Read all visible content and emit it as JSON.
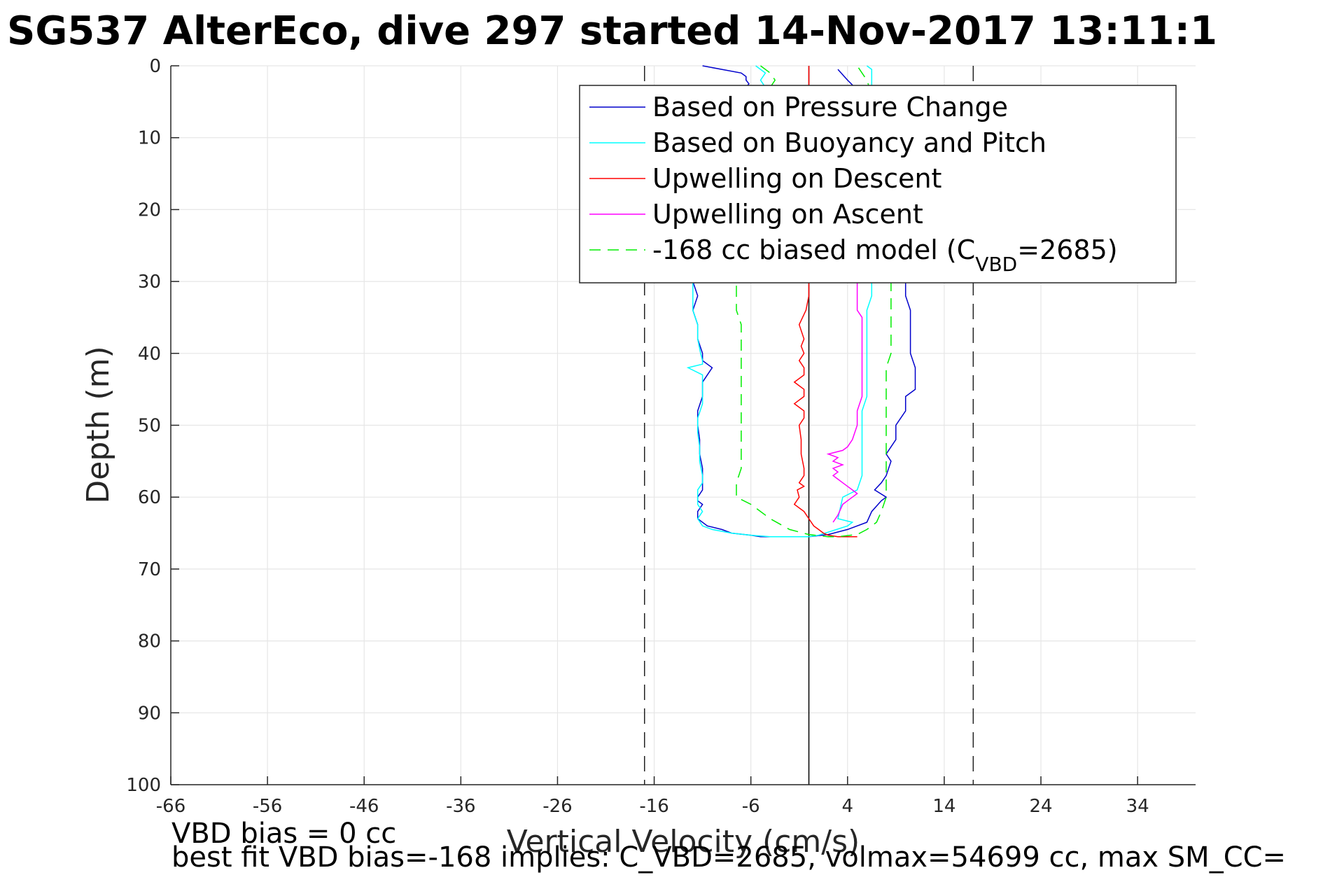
{
  "chart_data": {
    "type": "line",
    "title": "SG537 AlterEco, dive 297 started 14-Nov-2017 13:11:1",
    "xlabel": "Vertical Velocity (cm/s)",
    "ylabel": "Depth (m)",
    "xlim": [
      -66,
      40
    ],
    "ylim": [
      0,
      100
    ],
    "y_reversed": true,
    "grid": true,
    "legend_position": "top-right",
    "xticks": [
      "-66",
      "-56",
      "-46",
      "-36",
      "-26",
      "-16",
      "-6",
      "4",
      "14",
      "24",
      "34"
    ],
    "yticks": [
      "0",
      "10",
      "20",
      "30",
      "40",
      "50",
      "60",
      "70",
      "80",
      "90",
      "100"
    ],
    "reference_lines": {
      "zero_velocity": 0,
      "dashed_limits": [
        -17,
        17
      ]
    },
    "series": [
      {
        "name": "Based on Pressure Change",
        "color": "#0000cc",
        "style": "solid",
        "x": [
          -11,
          -7,
          -6.5,
          -6.5,
          -6.2,
          -6.5,
          -7,
          -8,
          -9,
          -10,
          -11,
          -11.5,
          -12,
          -12,
          -12,
          -12,
          -12,
          -12,
          -12,
          -12,
          -11.5,
          -12,
          -11.5,
          -11.5,
          -11,
          -11,
          -10,
          -11,
          -11,
          -11.5,
          -11.5,
          -11.3,
          -11.3,
          -11,
          -11,
          -11,
          -11.5,
          -11.5,
          -11.5,
          -11,
          -11.5,
          -11.5,
          -10.5,
          -9,
          -8,
          -6,
          -5,
          -4,
          0,
          2,
          4,
          6,
          6.5,
          7.5,
          8,
          6.8,
          7.5,
          8,
          8.5,
          8,
          9,
          9,
          10,
          10,
          11,
          11,
          10.5,
          10.5,
          10.5,
          10.5,
          10,
          10,
          10,
          10,
          10,
          10,
          10,
          10,
          10,
          10,
          9.5,
          9,
          8,
          7,
          5.5,
          4,
          3
        ],
        "y": [
          0,
          1,
          1.5,
          2,
          2.5,
          3,
          4,
          6,
          8,
          10,
          12,
          14,
          16,
          18,
          20,
          22,
          24,
          26,
          28,
          30,
          32,
          34,
          36,
          38,
          40,
          41,
          42,
          44,
          46,
          48,
          50,
          52,
          54,
          56,
          58,
          59,
          60,
          60.2,
          60.5,
          61,
          62,
          63,
          64,
          64.5,
          65,
          65.3,
          65.5,
          65.5,
          65.5,
          65.2,
          64.5,
          63.5,
          62,
          60.5,
          60,
          59,
          58,
          57,
          55,
          54,
          52,
          50,
          48,
          46,
          45,
          42,
          40,
          38,
          36,
          34,
          32,
          30,
          28,
          26,
          24,
          22,
          20,
          18,
          16,
          14,
          12,
          10,
          8,
          6,
          4,
          2,
          0.5
        ]
      },
      {
        "name": "Based on Buoyancy and Pitch",
        "color": "#00ffff",
        "style": "solid",
        "x": [
          -5.5,
          -4.5,
          -5,
          -4.5,
          -5,
          -6,
          -7.5,
          -9,
          -10,
          -11,
          -11.5,
          -12,
          -12,
          -12,
          -12,
          -12,
          -12,
          -12,
          -12,
          -12,
          -11.5,
          -11.5,
          -11.2,
          -11,
          -11,
          -12.5,
          -11,
          -11,
          -11,
          -11.5,
          -11.5,
          -11.3,
          -11.3,
          -11,
          -11,
          -11.5,
          -11.5,
          -11.5,
          -11,
          -11.5,
          -11,
          -10,
          -8,
          -6,
          -4,
          -2,
          0,
          1,
          4,
          4.5,
          3,
          3.5,
          5,
          5.5,
          5.5,
          5.5,
          5.5,
          5.5,
          6,
          6,
          6,
          6,
          6,
          6,
          6,
          6.5,
          6.5,
          6.5,
          6.5,
          7,
          7,
          7,
          7,
          7,
          7,
          7,
          7,
          7,
          7,
          6.5,
          6.5,
          6.5,
          6.5,
          6.5,
          6
        ],
        "y": [
          0,
          1,
          2,
          3,
          4,
          6,
          8,
          10,
          12,
          14,
          16,
          18,
          20,
          22,
          24,
          26,
          28,
          30,
          32,
          34,
          36,
          38,
          40,
          41,
          41.5,
          42,
          43,
          45,
          47,
          49,
          51,
          53,
          55,
          57,
          58,
          59,
          60,
          61,
          62,
          63,
          64,
          64.5,
          65,
          65.3,
          65.5,
          65.5,
          65.5,
          65.3,
          64,
          63.5,
          63,
          60,
          59,
          57,
          55,
          53,
          50,
          48,
          46,
          44,
          42,
          40,
          38,
          36,
          34,
          32,
          30,
          28,
          26,
          24,
          22,
          20,
          18,
          16,
          14,
          12,
          10,
          8,
          6,
          4,
          3,
          2,
          1,
          0.5,
          0
        ]
      },
      {
        "name": "Upwelling on Descent",
        "color": "#ff0000",
        "style": "solid",
        "x": [
          0,
          0,
          0,
          0,
          0,
          0,
          0,
          0,
          0,
          0,
          0,
          0,
          0,
          0,
          0,
          0,
          0,
          -0.3,
          -1,
          -0.5,
          -0.8,
          -0.5,
          -1,
          -0.5,
          -0.5,
          -1.5,
          -0.5,
          -0.5,
          -1.5,
          -0.5,
          -0.5,
          -1,
          -0.8,
          -0.8,
          -0.5,
          -0.5,
          -1,
          -0.5,
          -1.2,
          -1,
          -1.5,
          -0.5,
          0,
          0.5,
          1,
          1.5,
          2,
          3,
          5
        ],
        "y": [
          0,
          2,
          4,
          6,
          8,
          10,
          12,
          14,
          16,
          18,
          20,
          22,
          24,
          26,
          28,
          30,
          32,
          34,
          36,
          38,
          39,
          40,
          41,
          42,
          43,
          44,
          45,
          46,
          47,
          48,
          49,
          50,
          52,
          54,
          56,
          57,
          58,
          58.5,
          59,
          60,
          61,
          62,
          63,
          64,
          64.5,
          65,
          65.3,
          65.5,
          65.5
        ]
      },
      {
        "name": "Upwelling on Ascent",
        "color": "#ff00ff",
        "style": "solid",
        "x": [
          2.5,
          3,
          3.5,
          4,
          4.5,
          5,
          4.5,
          4,
          3.5,
          3,
          2.5,
          3,
          2.5,
          3.5,
          2.5,
          3,
          2,
          3.5,
          4,
          4.5,
          5,
          5,
          5.5,
          5.5,
          5.5,
          5.5,
          5.5,
          5.5,
          5.5,
          5,
          5,
          5,
          5,
          5,
          5,
          5,
          5
        ],
        "y": [
          63.5,
          62.5,
          61,
          60.5,
          60,
          59.5,
          59,
          58.5,
          58,
          57.5,
          57,
          56.5,
          56,
          55.5,
          55,
          54.5,
          54,
          53.5,
          53,
          52,
          50,
          48,
          46,
          44,
          42,
          40,
          38,
          36,
          35,
          34,
          33,
          32,
          31,
          30,
          29,
          28,
          27
        ]
      },
      {
        "name": "-168 cc biased model (C_VBD=2685)",
        "color": "#00ee00",
        "style": "dashed",
        "x": [
          -5,
          -4,
          -3.5,
          -4,
          -4.5,
          -5,
          -6,
          -7,
          -7.5,
          -7.5,
          -7.5,
          -7.5,
          -7.5,
          -7.5,
          -7.5,
          -7.5,
          -7.5,
          -7.5,
          -7.5,
          -7.5,
          -7,
          -7,
          -7,
          -7,
          -7,
          -7,
          -7,
          -7,
          -7,
          -7,
          -7,
          -7.5,
          -7.5,
          -6,
          -4,
          -2,
          0,
          2,
          3,
          5,
          6,
          7,
          7.5,
          8,
          8,
          8,
          8,
          8,
          8,
          8,
          8,
          8,
          8,
          8.5,
          8.5,
          8.5,
          8.5,
          8.5,
          8.5,
          8.5,
          8.5,
          8.5,
          8.5,
          8.5,
          8.5,
          8,
          8,
          7.5,
          7,
          6.5,
          6,
          5.5,
          5
        ],
        "y": [
          0,
          1,
          2,
          3,
          4,
          6,
          8,
          10,
          12,
          14,
          16,
          18,
          20,
          22,
          24,
          26,
          28,
          30,
          32,
          34,
          36,
          38,
          40,
          42,
          44,
          46,
          48,
          50,
          52,
          54,
          56,
          58,
          60,
          61,
          63,
          64.5,
          65.2,
          65.5,
          65.5,
          65.2,
          64.5,
          63.5,
          62,
          60,
          58,
          56,
          54,
          52,
          50,
          48,
          46,
          44,
          42,
          40,
          38,
          36,
          34,
          32,
          30,
          28,
          26,
          24,
          22,
          20,
          18,
          14,
          10,
          8,
          6,
          4,
          2,
          1,
          0
        ]
      }
    ]
  },
  "footer": {
    "line1": "VBD bias = 0 cc",
    "line2": "best fit VBD bias=-168 implies: C_VBD=2685, volmax=54699 cc, max SM_CC="
  }
}
